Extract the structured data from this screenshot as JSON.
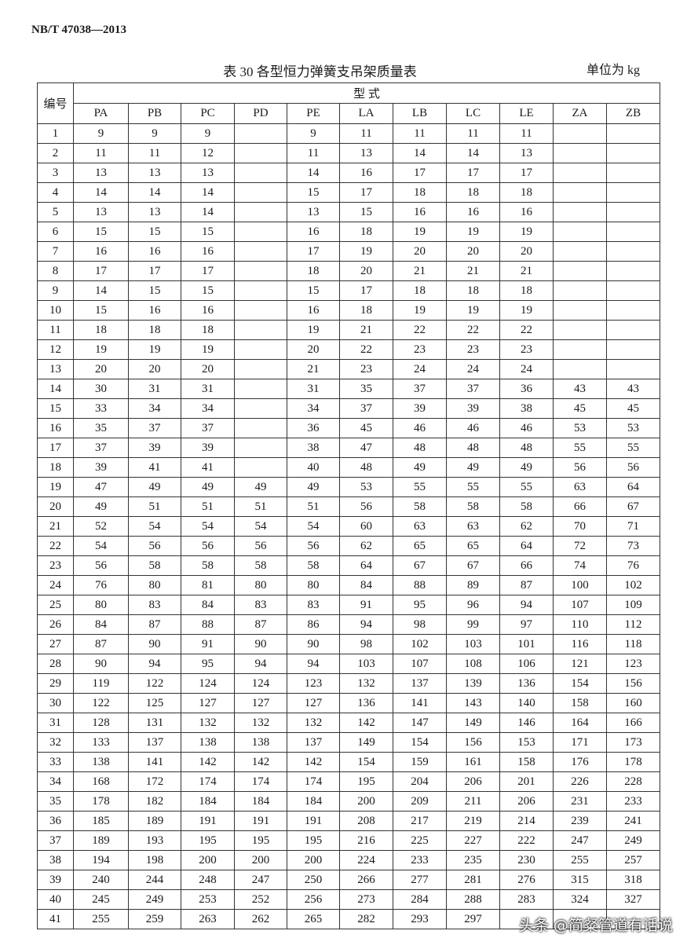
{
  "header": {
    "standard": "NB/T 47038—2013",
    "title": "表 30 各型恒力弹簧支吊架质量表",
    "unit": "单位为 kg"
  },
  "table": {
    "row_header": "编号",
    "group_header": "型 式",
    "columns": [
      "PA",
      "PB",
      "PC",
      "PD",
      "PE",
      "LA",
      "LB",
      "LC",
      "LE",
      "ZA",
      "ZB"
    ],
    "rows": [
      [
        1,
        9,
        9,
        9,
        null,
        9,
        11,
        11,
        11,
        11,
        null,
        null
      ],
      [
        2,
        11,
        11,
        12,
        null,
        11,
        13,
        14,
        14,
        13,
        null,
        null
      ],
      [
        3,
        13,
        13,
        13,
        null,
        14,
        16,
        17,
        17,
        17,
        null,
        null
      ],
      [
        4,
        14,
        14,
        14,
        null,
        15,
        17,
        18,
        18,
        18,
        null,
        null
      ],
      [
        5,
        13,
        13,
        14,
        null,
        13,
        15,
        16,
        16,
        16,
        null,
        null
      ],
      [
        6,
        15,
        15,
        15,
        null,
        16,
        18,
        19,
        19,
        19,
        null,
        null
      ],
      [
        7,
        16,
        16,
        16,
        null,
        17,
        19,
        20,
        20,
        20,
        null,
        null
      ],
      [
        8,
        17,
        17,
        17,
        null,
        18,
        20,
        21,
        21,
        21,
        null,
        null
      ],
      [
        9,
        14,
        15,
        15,
        null,
        15,
        17,
        18,
        18,
        18,
        null,
        null
      ],
      [
        10,
        15,
        16,
        16,
        null,
        16,
        18,
        19,
        19,
        19,
        null,
        null
      ],
      [
        11,
        18,
        18,
        18,
        null,
        19,
        21,
        22,
        22,
        22,
        null,
        null
      ],
      [
        12,
        19,
        19,
        19,
        null,
        20,
        22,
        23,
        23,
        23,
        null,
        null
      ],
      [
        13,
        20,
        20,
        20,
        null,
        21,
        23,
        24,
        24,
        24,
        null,
        null
      ],
      [
        14,
        30,
        31,
        31,
        null,
        31,
        35,
        37,
        37,
        36,
        43,
        43
      ],
      [
        15,
        33,
        34,
        34,
        null,
        34,
        37,
        39,
        39,
        38,
        45,
        45
      ],
      [
        16,
        35,
        37,
        37,
        null,
        36,
        45,
        46,
        46,
        46,
        53,
        53
      ],
      [
        17,
        37,
        39,
        39,
        null,
        38,
        47,
        48,
        48,
        48,
        55,
        55
      ],
      [
        18,
        39,
        41,
        41,
        null,
        40,
        48,
        49,
        49,
        49,
        56,
        56
      ],
      [
        19,
        47,
        49,
        49,
        49,
        49,
        53,
        55,
        55,
        55,
        63,
        64
      ],
      [
        20,
        49,
        51,
        51,
        51,
        51,
        56,
        58,
        58,
        58,
        66,
        67
      ],
      [
        21,
        52,
        54,
        54,
        54,
        54,
        60,
        63,
        63,
        62,
        70,
        71
      ],
      [
        22,
        54,
        56,
        56,
        56,
        56,
        62,
        65,
        65,
        64,
        72,
        73
      ],
      [
        23,
        56,
        58,
        58,
        58,
        58,
        64,
        67,
        67,
        66,
        74,
        76
      ],
      [
        24,
        76,
        80,
        81,
        80,
        80,
        84,
        88,
        89,
        87,
        100,
        102
      ],
      [
        25,
        80,
        83,
        84,
        83,
        83,
        91,
        95,
        96,
        94,
        107,
        109
      ],
      [
        26,
        84,
        87,
        88,
        87,
        86,
        94,
        98,
        99,
        97,
        110,
        112
      ],
      [
        27,
        87,
        90,
        91,
        90,
        90,
        98,
        102,
        103,
        101,
        116,
        118
      ],
      [
        28,
        90,
        94,
        95,
        94,
        94,
        103,
        107,
        108,
        106,
        121,
        123
      ],
      [
        29,
        119,
        122,
        124,
        124,
        123,
        132,
        137,
        139,
        136,
        154,
        156
      ],
      [
        30,
        122,
        125,
        127,
        127,
        127,
        136,
        141,
        143,
        140,
        158,
        160
      ],
      [
        31,
        128,
        131,
        132,
        132,
        132,
        142,
        147,
        149,
        146,
        164,
        166
      ],
      [
        32,
        133,
        137,
        138,
        138,
        137,
        149,
        154,
        156,
        153,
        171,
        173
      ],
      [
        33,
        138,
        141,
        142,
        142,
        142,
        154,
        159,
        161,
        158,
        176,
        178
      ],
      [
        34,
        168,
        172,
        174,
        174,
        174,
        195,
        204,
        206,
        201,
        226,
        228
      ],
      [
        35,
        178,
        182,
        184,
        184,
        184,
        200,
        209,
        211,
        206,
        231,
        233
      ],
      [
        36,
        185,
        189,
        191,
        191,
        191,
        208,
        217,
        219,
        214,
        239,
        241
      ],
      [
        37,
        189,
        193,
        195,
        195,
        195,
        216,
        225,
        227,
        222,
        247,
        249
      ],
      [
        38,
        194,
        198,
        200,
        200,
        200,
        224,
        233,
        235,
        230,
        255,
        257
      ],
      [
        39,
        240,
        244,
        248,
        247,
        250,
        266,
        277,
        281,
        276,
        315,
        318
      ],
      [
        40,
        245,
        249,
        253,
        252,
        256,
        273,
        284,
        288,
        283,
        324,
        327
      ],
      [
        41,
        255,
        259,
        263,
        262,
        265,
        282,
        293,
        297,
        null,
        null,
        null
      ]
    ]
  },
  "watermark": "头条 @简粲管道有话说"
}
